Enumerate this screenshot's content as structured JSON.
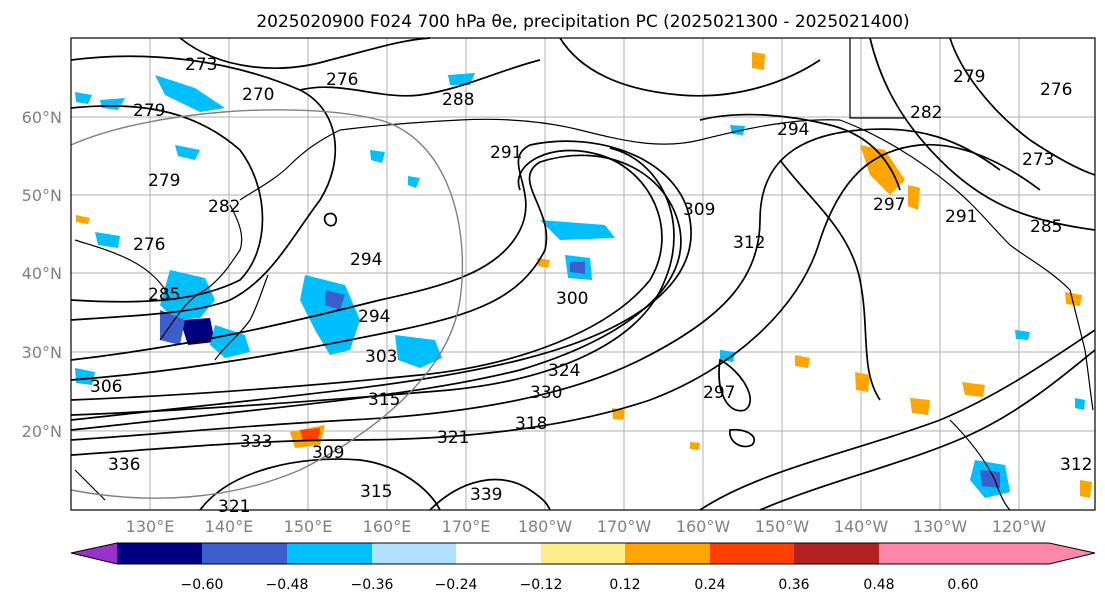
{
  "title": "2025020900 F024 700 hPa θe, precipitation PC (2025021300 - 2025021400)",
  "map": {
    "lat_labels": [
      "60°N",
      "50°N",
      "40°N",
      "30°N",
      "20°N"
    ],
    "lon_labels": [
      "130°E",
      "140°E",
      "150°E",
      "160°E",
      "170°E",
      "180°W",
      "170°W",
      "160°W",
      "150°W",
      "140°W",
      "130°W",
      "120°W"
    ],
    "contour_labels": [
      "273",
      "270",
      "276",
      "279",
      "279",
      "288",
      "291",
      "294",
      "300",
      "309",
      "312",
      "276",
      "279",
      "282",
      "297",
      "294",
      "291",
      "285",
      "273",
      "276",
      "282",
      "285",
      "294",
      "303",
      "315",
      "318",
      "321",
      "324",
      "330",
      "333",
      "306",
      "336",
      "309",
      "321",
      "339",
      "315",
      "312",
      "297"
    ]
  },
  "colorbar": {
    "ticks": [
      "−0.60",
      "−0.48",
      "−0.36",
      "−0.24",
      "−0.12",
      "0.12",
      "0.24",
      "0.36",
      "0.48",
      "0.60"
    ],
    "colors": [
      "#9932cc",
      "#000080",
      "#3a5fcd",
      "#00bfff",
      "#b0e2ff",
      "#ffffff",
      "#ffec8b",
      "#ffa500",
      "#ff4000",
      "#b22222",
      "#ff88aa"
    ]
  }
}
